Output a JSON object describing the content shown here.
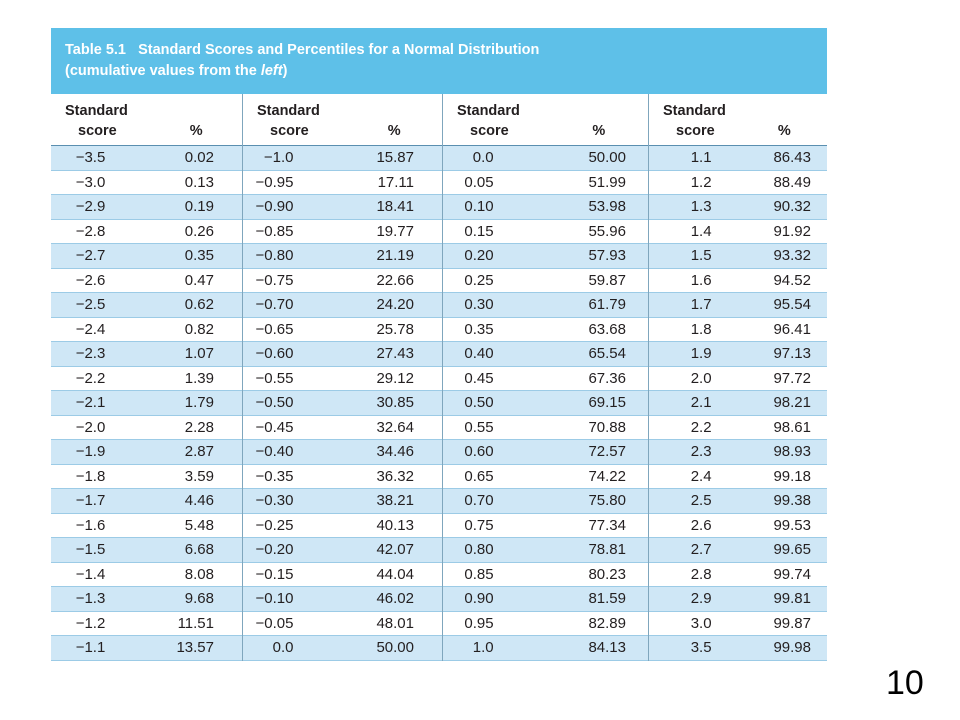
{
  "caption": {
    "label": "Table 5.1",
    "title": "Standard Scores and Percentiles for a Normal Distribution",
    "sub_prefix": "(cumulative values from the ",
    "sub_italic": "left",
    "sub_suffix": ")"
  },
  "headers": {
    "score_line1": "Standard",
    "score_line2": "score",
    "percent": "%"
  },
  "groups": [
    {
      "rows": [
        {
          "z": "−3.5",
          "p": "0.02"
        },
        {
          "z": "−3.0",
          "p": "0.13"
        },
        {
          "z": "−2.9",
          "p": "0.19"
        },
        {
          "z": "−2.8",
          "p": "0.26"
        },
        {
          "z": "−2.7",
          "p": "0.35"
        },
        {
          "z": "−2.6",
          "p": "0.47"
        },
        {
          "z": "−2.5",
          "p": "0.62"
        },
        {
          "z": "−2.4",
          "p": "0.82"
        },
        {
          "z": "−2.3",
          "p": "1.07"
        },
        {
          "z": "−2.2",
          "p": "1.39"
        },
        {
          "z": "−2.1",
          "p": "1.79"
        },
        {
          "z": "−2.0",
          "p": "2.28"
        },
        {
          "z": "−1.9",
          "p": "2.87"
        },
        {
          "z": "−1.8",
          "p": "3.59"
        },
        {
          "z": "−1.7",
          "p": "4.46"
        },
        {
          "z": "−1.6",
          "p": "5.48"
        },
        {
          "z": "−1.5",
          "p": "6.68"
        },
        {
          "z": "−1.4",
          "p": "8.08"
        },
        {
          "z": "−1.3",
          "p": "9.68"
        },
        {
          "z": "−1.2",
          "p": "11.51"
        },
        {
          "z": "−1.1",
          "p": "13.57"
        }
      ]
    },
    {
      "rows": [
        {
          "z": "−1.0",
          "p": "15.87"
        },
        {
          "z": "−0.95",
          "p": "17.11"
        },
        {
          "z": "−0.90",
          "p": "18.41"
        },
        {
          "z": "−0.85",
          "p": "19.77"
        },
        {
          "z": "−0.80",
          "p": "21.19"
        },
        {
          "z": "−0.75",
          "p": "22.66"
        },
        {
          "z": "−0.70",
          "p": "24.20"
        },
        {
          "z": "−0.65",
          "p": "25.78"
        },
        {
          "z": "−0.60",
          "p": "27.43"
        },
        {
          "z": "−0.55",
          "p": "29.12"
        },
        {
          "z": "−0.50",
          "p": "30.85"
        },
        {
          "z": "−0.45",
          "p": "32.64"
        },
        {
          "z": "−0.40",
          "p": "34.46"
        },
        {
          "z": "−0.35",
          "p": "36.32"
        },
        {
          "z": "−0.30",
          "p": "38.21"
        },
        {
          "z": "−0.25",
          "p": "40.13"
        },
        {
          "z": "−0.20",
          "p": "42.07"
        },
        {
          "z": "−0.15",
          "p": "44.04"
        },
        {
          "z": "−0.10",
          "p": "46.02"
        },
        {
          "z": "−0.05",
          "p": "48.01"
        },
        {
          "z": "0.0",
          "p": "50.00"
        }
      ]
    },
    {
      "rows": [
        {
          "z": "0.0",
          "p": "50.00"
        },
        {
          "z": "0.05",
          "p": "51.99"
        },
        {
          "z": "0.10",
          "p": "53.98"
        },
        {
          "z": "0.15",
          "p": "55.96"
        },
        {
          "z": "0.20",
          "p": "57.93"
        },
        {
          "z": "0.25",
          "p": "59.87"
        },
        {
          "z": "0.30",
          "p": "61.79"
        },
        {
          "z": "0.35",
          "p": "63.68"
        },
        {
          "z": "0.40",
          "p": "65.54"
        },
        {
          "z": "0.45",
          "p": "67.36"
        },
        {
          "z": "0.50",
          "p": "69.15"
        },
        {
          "z": "0.55",
          "p": "70.88"
        },
        {
          "z": "0.60",
          "p": "72.57"
        },
        {
          "z": "0.65",
          "p": "74.22"
        },
        {
          "z": "0.70",
          "p": "75.80"
        },
        {
          "z": "0.75",
          "p": "77.34"
        },
        {
          "z": "0.80",
          "p": "78.81"
        },
        {
          "z": "0.85",
          "p": "80.23"
        },
        {
          "z": "0.90",
          "p": "81.59"
        },
        {
          "z": "0.95",
          "p": "82.89"
        },
        {
          "z": "1.0",
          "p": "84.13"
        }
      ]
    },
    {
      "rows": [
        {
          "z": "1.1",
          "p": "86.43"
        },
        {
          "z": "1.2",
          "p": "88.49"
        },
        {
          "z": "1.3",
          "p": "90.32"
        },
        {
          "z": "1.4",
          "p": "91.92"
        },
        {
          "z": "1.5",
          "p": "93.32"
        },
        {
          "z": "1.6",
          "p": "94.52"
        },
        {
          "z": "1.7",
          "p": "95.54"
        },
        {
          "z": "1.8",
          "p": "96.41"
        },
        {
          "z": "1.9",
          "p": "97.13"
        },
        {
          "z": "2.0",
          "p": "97.72"
        },
        {
          "z": "2.1",
          "p": "98.21"
        },
        {
          "z": "2.2",
          "p": "98.61"
        },
        {
          "z": "2.3",
          "p": "98.93"
        },
        {
          "z": "2.4",
          "p": "99.18"
        },
        {
          "z": "2.5",
          "p": "99.38"
        },
        {
          "z": "2.6",
          "p": "99.53"
        },
        {
          "z": "2.7",
          "p": "99.65"
        },
        {
          "z": "2.8",
          "p": "99.74"
        },
        {
          "z": "2.9",
          "p": "99.81"
        },
        {
          "z": "3.0",
          "p": "99.87"
        },
        {
          "z": "3.5",
          "p": "99.98"
        }
      ]
    }
  ],
  "slide_number": "10"
}
